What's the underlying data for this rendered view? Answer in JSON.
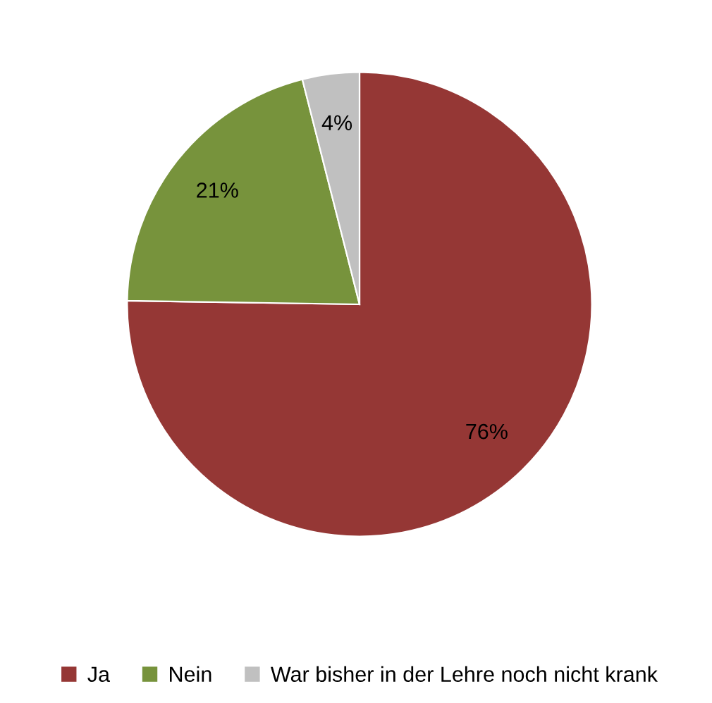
{
  "chart_data": {
    "type": "pie",
    "categories": [
      "Ja",
      "Nein",
      "War bisher in der Lehre noch nicht krank"
    ],
    "values": [
      76,
      21,
      4
    ],
    "colors": [
      "#953735",
      "#77933c",
      "#c0c0c0"
    ],
    "value_labels": [
      "76%",
      "21%",
      "4%"
    ],
    "legend": "bottom"
  }
}
